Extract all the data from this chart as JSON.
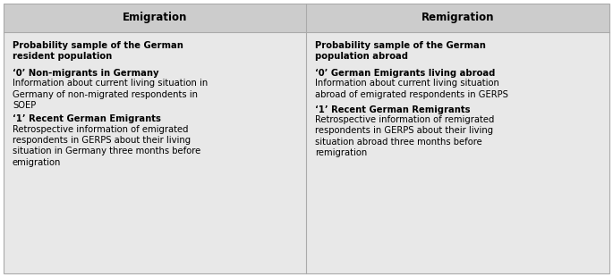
{
  "header_bg": "#cccccc",
  "body_bg": "#e8e8e8",
  "outer_bg": "#e8e8e8",
  "border_color": "#aaaaaa",
  "divider_color": "#aaaaaa",
  "header_font_size": 8.5,
  "body_font_size": 7.2,
  "left_header": "Emigration",
  "right_header": "Remigration",
  "left_col": [
    {
      "bold": "Probability sample of the German\nresident population",
      "normal": ""
    },
    {
      "bold": "‘0’ Non-migrants in Germany",
      "normal": "Information about current living situation in\nGermany of non-migrated respondents in\nSOEP"
    },
    {
      "bold": "‘1’ Recent German Emigrants",
      "normal": "Retrospective information of emigrated\nrespondents in GERPS about their living\nsituation in Germany three months before\nemigration"
    }
  ],
  "right_col": [
    {
      "bold": "Probability sample of the German\npopulation abroad",
      "normal": ""
    },
    {
      "bold": "‘0’ German Emigrants living abroad",
      "normal": "Information about current living situation\nabroad of emigrated respondents in GERPS"
    },
    {
      "bold": "‘1’ Recent German Remigrants",
      "normal": "Retrospective information of remigrated\nrespondents in GERPS about their living\nsituation abroad three months before\nremigration"
    }
  ]
}
